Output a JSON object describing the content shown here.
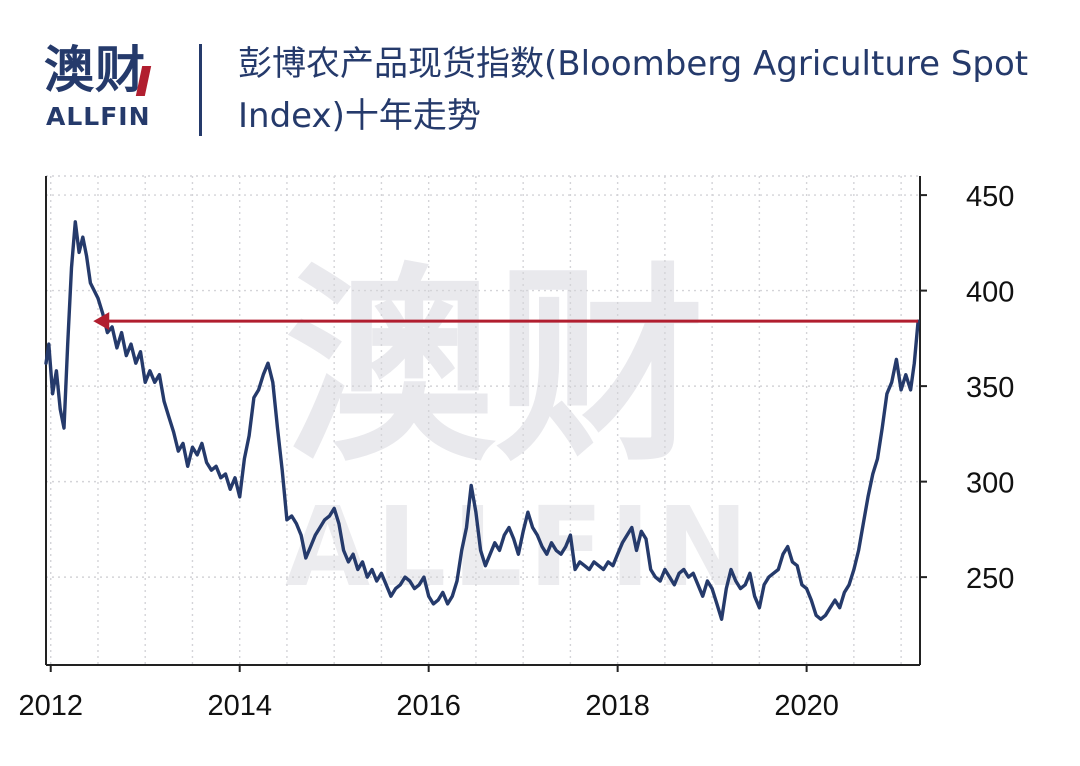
{
  "brand": {
    "name_cn": "澳财",
    "name_en": "ALLFIN",
    "primary_color": "#253a6b",
    "accent_color": "#b11e2f"
  },
  "chart_title": "彭博农产品现货指数(Bloomberg Agriculture Spot Index)十年走势",
  "chart_data": {
    "type": "line",
    "title": "彭博农产品现货指数(Bloomberg Agriculture Spot Index)十年走势",
    "xlabel": "",
    "ylabel": "",
    "x_ticks": [
      "2012",
      "2014",
      "2016",
      "2018",
      "2020"
    ],
    "y_ticks": [
      "250",
      "300",
      "350",
      "400",
      "450"
    ],
    "xlim": [
      2011.95,
      2021.2
    ],
    "ylim": [
      204,
      460
    ],
    "grid": true,
    "y_axis_side": "right",
    "line_color": "#253a6b",
    "series": [
      {
        "values": [
          [
            2011.95,
            362
          ],
          [
            2011.98,
            372
          ],
          [
            2012.02,
            346
          ],
          [
            2012.06,
            358
          ],
          [
            2012.1,
            338
          ],
          [
            2012.14,
            328
          ],
          [
            2012.18,
            372
          ],
          [
            2012.22,
            412
          ],
          [
            2012.26,
            436
          ],
          [
            2012.3,
            420
          ],
          [
            2012.34,
            428
          ],
          [
            2012.38,
            418
          ],
          [
            2012.42,
            404
          ],
          [
            2012.46,
            400
          ],
          [
            2012.5,
            396
          ],
          [
            2012.55,
            388
          ],
          [
            2012.6,
            378
          ],
          [
            2012.65,
            381
          ],
          [
            2012.7,
            370
          ],
          [
            2012.75,
            378
          ],
          [
            2012.8,
            366
          ],
          [
            2012.85,
            372
          ],
          [
            2012.9,
            362
          ],
          [
            2012.95,
            368
          ],
          [
            2013.0,
            352
          ],
          [
            2013.05,
            358
          ],
          [
            2013.1,
            352
          ],
          [
            2013.15,
            356
          ],
          [
            2013.2,
            342
          ],
          [
            2013.25,
            334
          ],
          [
            2013.3,
            326
          ],
          [
            2013.35,
            316
          ],
          [
            2013.4,
            320
          ],
          [
            2013.45,
            308
          ],
          [
            2013.5,
            318
          ],
          [
            2013.55,
            314
          ],
          [
            2013.6,
            320
          ],
          [
            2013.65,
            310
          ],
          [
            2013.7,
            306
          ],
          [
            2013.75,
            308
          ],
          [
            2013.8,
            302
          ],
          [
            2013.85,
            304
          ],
          [
            2013.9,
            296
          ],
          [
            2013.95,
            302
          ],
          [
            2014.0,
            292
          ],
          [
            2014.05,
            312
          ],
          [
            2014.1,
            324
          ],
          [
            2014.15,
            344
          ],
          [
            2014.2,
            348
          ],
          [
            2014.25,
            356
          ],
          [
            2014.3,
            362
          ],
          [
            2014.35,
            352
          ],
          [
            2014.4,
            328
          ],
          [
            2014.45,
            306
          ],
          [
            2014.5,
            280
          ],
          [
            2014.55,
            282
          ],
          [
            2014.6,
            278
          ],
          [
            2014.65,
            272
          ],
          [
            2014.7,
            260
          ],
          [
            2014.75,
            266
          ],
          [
            2014.8,
            272
          ],
          [
            2014.85,
            276
          ],
          [
            2014.9,
            280
          ],
          [
            2014.95,
            282
          ],
          [
            2015.0,
            286
          ],
          [
            2015.05,
            278
          ],
          [
            2015.1,
            264
          ],
          [
            2015.15,
            258
          ],
          [
            2015.2,
            262
          ],
          [
            2015.25,
            254
          ],
          [
            2015.3,
            258
          ],
          [
            2015.35,
            250
          ],
          [
            2015.4,
            254
          ],
          [
            2015.45,
            248
          ],
          [
            2015.5,
            252
          ],
          [
            2015.55,
            246
          ],
          [
            2015.6,
            240
          ],
          [
            2015.65,
            244
          ],
          [
            2015.7,
            246
          ],
          [
            2015.75,
            250
          ],
          [
            2015.8,
            248
          ],
          [
            2015.85,
            244
          ],
          [
            2015.9,
            246
          ],
          [
            2015.95,
            250
          ],
          [
            2016.0,
            240
          ],
          [
            2016.05,
            236
          ],
          [
            2016.1,
            238
          ],
          [
            2016.15,
            242
          ],
          [
            2016.2,
            236
          ],
          [
            2016.25,
            240
          ],
          [
            2016.3,
            248
          ],
          [
            2016.35,
            264
          ],
          [
            2016.4,
            276
          ],
          [
            2016.45,
            298
          ],
          [
            2016.5,
            284
          ],
          [
            2016.55,
            264
          ],
          [
            2016.6,
            256
          ],
          [
            2016.65,
            262
          ],
          [
            2016.7,
            268
          ],
          [
            2016.75,
            264
          ],
          [
            2016.8,
            272
          ],
          [
            2016.85,
            276
          ],
          [
            2016.9,
            270
          ],
          [
            2016.95,
            262
          ],
          [
            2017.0,
            274
          ],
          [
            2017.05,
            284
          ],
          [
            2017.1,
            276
          ],
          [
            2017.15,
            272
          ],
          [
            2017.2,
            266
          ],
          [
            2017.25,
            262
          ],
          [
            2017.3,
            268
          ],
          [
            2017.35,
            264
          ],
          [
            2017.4,
            262
          ],
          [
            2017.45,
            266
          ],
          [
            2017.5,
            272
          ],
          [
            2017.55,
            254
          ],
          [
            2017.6,
            258
          ],
          [
            2017.65,
            256
          ],
          [
            2017.7,
            254
          ],
          [
            2017.75,
            258
          ],
          [
            2017.8,
            256
          ],
          [
            2017.85,
            254
          ],
          [
            2017.9,
            258
          ],
          [
            2017.95,
            256
          ],
          [
            2018.0,
            262
          ],
          [
            2018.05,
            268
          ],
          [
            2018.1,
            272
          ],
          [
            2018.15,
            276
          ],
          [
            2018.2,
            264
          ],
          [
            2018.25,
            274
          ],
          [
            2018.3,
            270
          ],
          [
            2018.35,
            254
          ],
          [
            2018.4,
            250
          ],
          [
            2018.45,
            248
          ],
          [
            2018.5,
            254
          ],
          [
            2018.55,
            250
          ],
          [
            2018.6,
            246
          ],
          [
            2018.65,
            252
          ],
          [
            2018.7,
            254
          ],
          [
            2018.75,
            250
          ],
          [
            2018.8,
            252
          ],
          [
            2018.85,
            246
          ],
          [
            2018.9,
            240
          ],
          [
            2018.95,
            248
          ],
          [
            2019.0,
            244
          ],
          [
            2019.05,
            236
          ],
          [
            2019.1,
            228
          ],
          [
            2019.15,
            244
          ],
          [
            2019.2,
            254
          ],
          [
            2019.25,
            248
          ],
          [
            2019.3,
            244
          ],
          [
            2019.35,
            246
          ],
          [
            2019.4,
            252
          ],
          [
            2019.45,
            240
          ],
          [
            2019.5,
            234
          ],
          [
            2019.55,
            246
          ],
          [
            2019.6,
            250
          ],
          [
            2019.65,
            252
          ],
          [
            2019.7,
            254
          ],
          [
            2019.75,
            262
          ],
          [
            2019.8,
            266
          ],
          [
            2019.85,
            258
          ],
          [
            2019.9,
            256
          ],
          [
            2019.95,
            246
          ],
          [
            2020.0,
            244
          ],
          [
            2020.05,
            238
          ],
          [
            2020.1,
            230
          ],
          [
            2020.15,
            228
          ],
          [
            2020.2,
            230
          ],
          [
            2020.25,
            234
          ],
          [
            2020.3,
            238
          ],
          [
            2020.35,
            234
          ],
          [
            2020.4,
            242
          ],
          [
            2020.45,
            246
          ],
          [
            2020.5,
            254
          ],
          [
            2020.55,
            264
          ],
          [
            2020.6,
            278
          ],
          [
            2020.65,
            292
          ],
          [
            2020.7,
            304
          ],
          [
            2020.75,
            312
          ],
          [
            2020.8,
            328
          ],
          [
            2020.85,
            346
          ],
          [
            2020.9,
            352
          ],
          [
            2020.95,
            364
          ],
          [
            2021.0,
            348
          ],
          [
            2021.05,
            356
          ],
          [
            2021.1,
            348
          ],
          [
            2021.14,
            362
          ],
          [
            2021.18,
            384
          ]
        ]
      }
    ],
    "annotations": [
      {
        "type": "arrow",
        "y": 384,
        "x_from": 2021.18,
        "x_to": 2012.45,
        "color": "#b11e2f"
      }
    ]
  }
}
